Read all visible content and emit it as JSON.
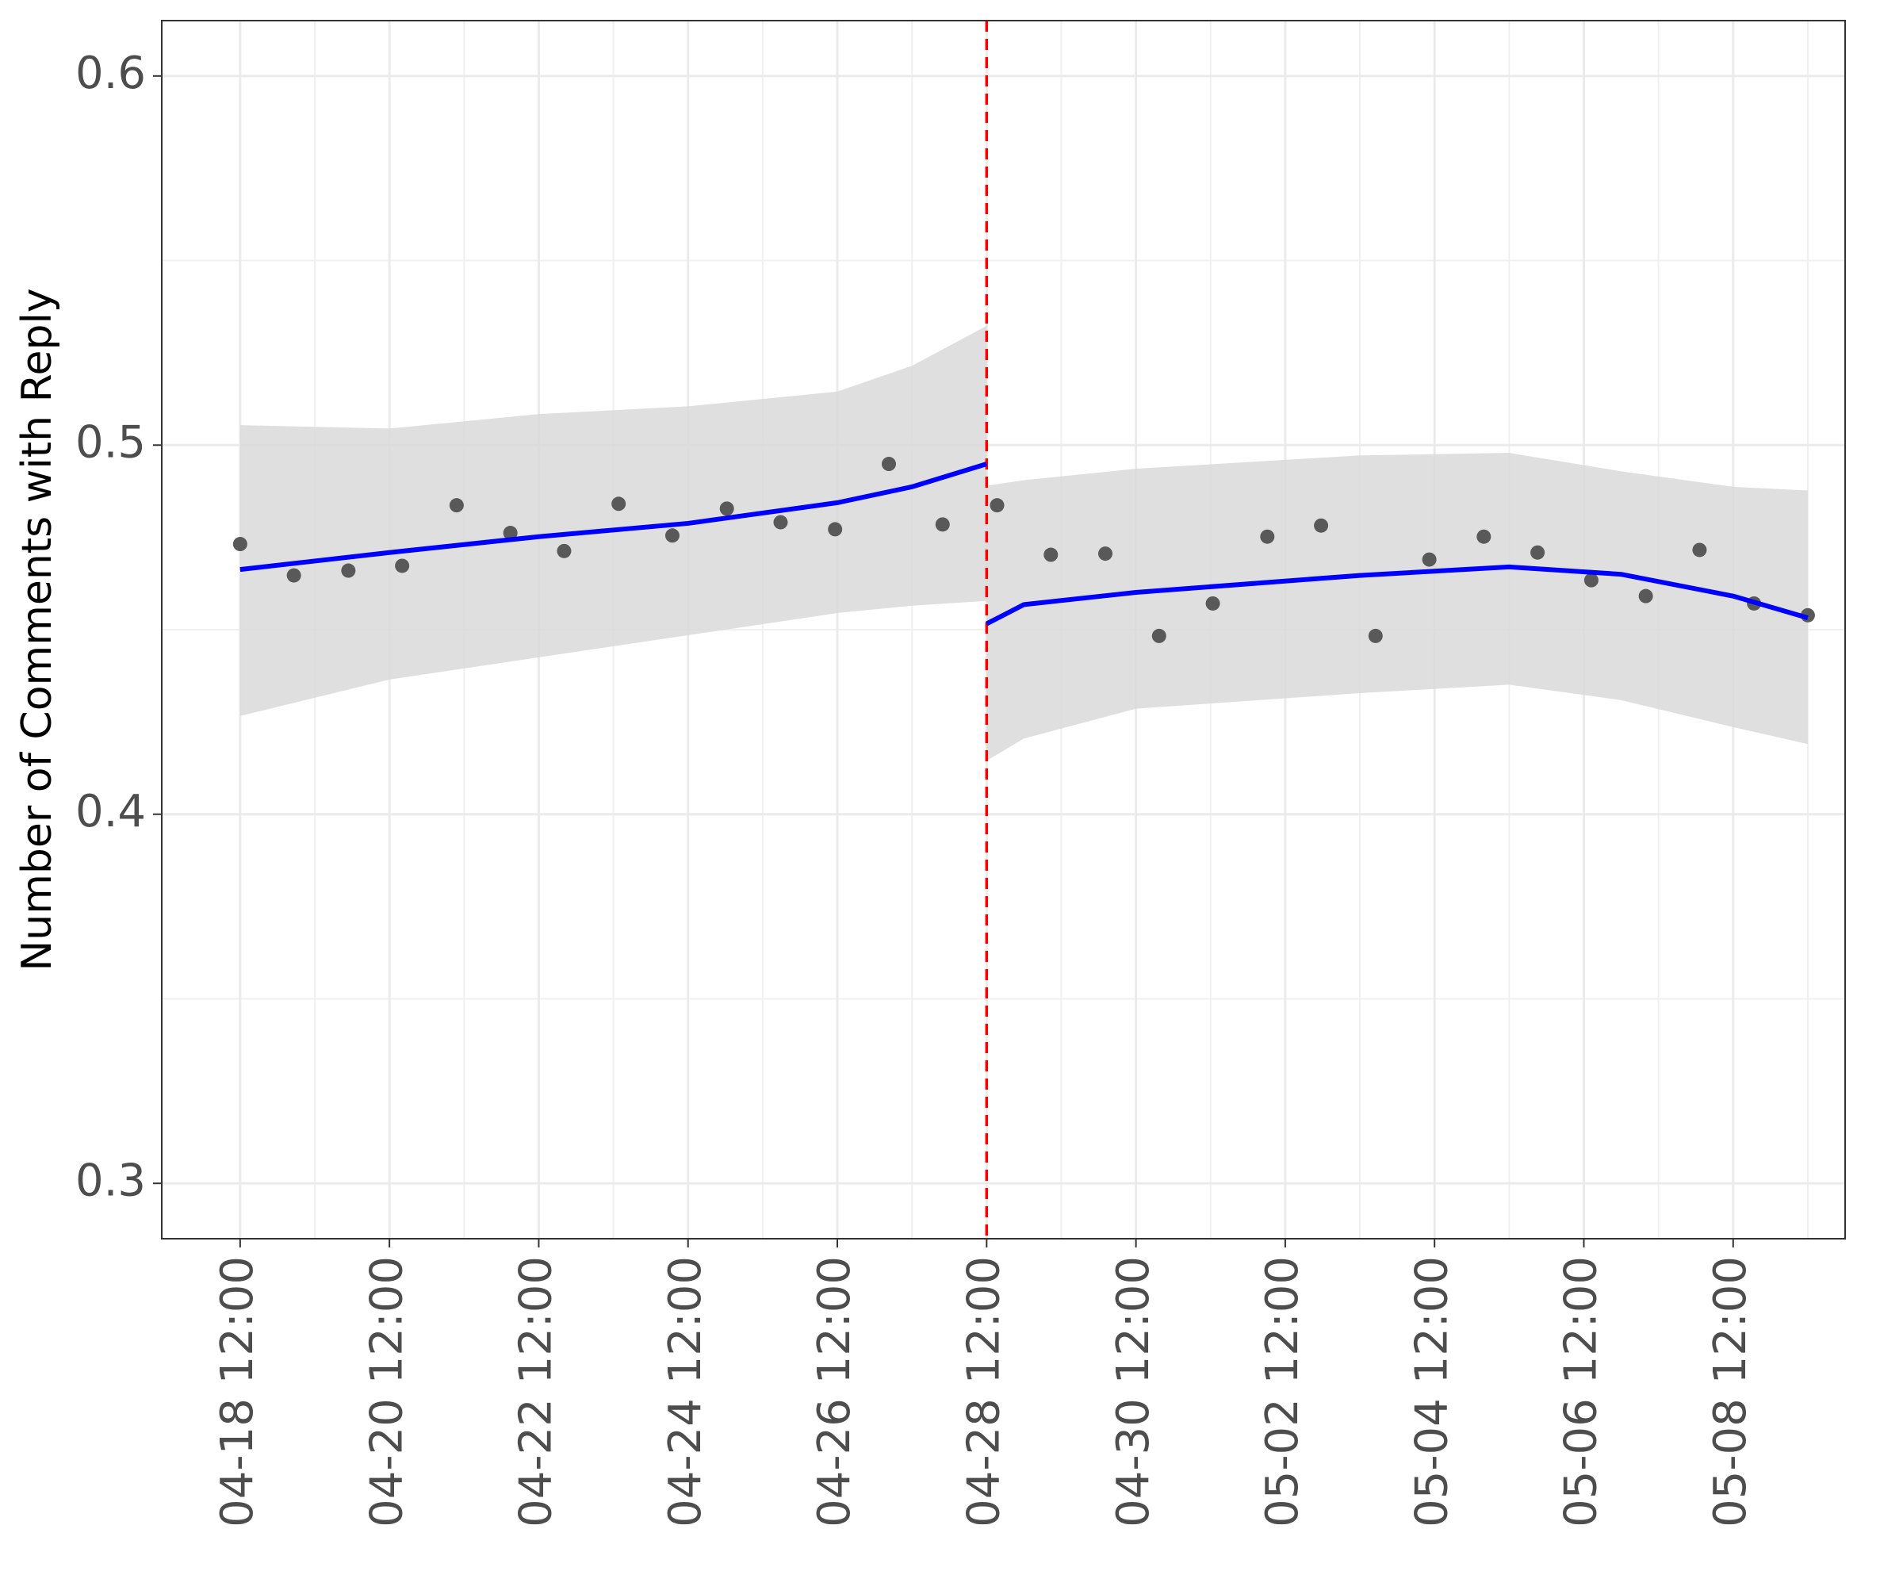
{
  "chart_data": {
    "type": "scatter",
    "ylabel": "Number of Comments with Reply",
    "xlim": [
      -1.05,
      21.5
    ],
    "xticks": [
      {
        "value": 0,
        "label": "04-18 12:00"
      },
      {
        "value": 2,
        "label": "04-20 12:00"
      },
      {
        "value": 4,
        "label": "04-22 12:00"
      },
      {
        "value": 6,
        "label": "04-24 12:00"
      },
      {
        "value": 8,
        "label": "04-26 12:00"
      },
      {
        "value": 10,
        "label": "04-28 12:00"
      },
      {
        "value": 12,
        "label": "04-30 12:00"
      },
      {
        "value": 14,
        "label": "05-02 12:00"
      },
      {
        "value": 16,
        "label": "05-04 12:00"
      },
      {
        "value": 18,
        "label": "05-06 12:00"
      },
      {
        "value": 20,
        "label": "05-08 12:00"
      }
    ],
    "ylim": [
      0.285,
      0.615
    ],
    "yticks": [
      0.3,
      0.4,
      0.5,
      0.6
    ],
    "grid": true,
    "points": {
      "color": "#595959",
      "x": [
        0,
        0.72,
        1.45,
        2.17,
        2.9,
        3.62,
        4.34,
        5.07,
        5.79,
        6.52,
        7.24,
        7.97,
        8.69,
        9.41,
        10.14,
        10.86,
        11.59,
        12.31,
        13.03,
        13.76,
        14.48,
        15.21,
        15.93,
        16.66,
        17.38,
        18.1,
        18.83,
        19.55,
        20.28,
        21
      ],
      "values": [
        0.4732,
        0.4647,
        0.466,
        0.4673,
        0.4837,
        0.4762,
        0.4713,
        0.4841,
        0.4755,
        0.4828,
        0.4791,
        0.4772,
        0.4949,
        0.4785,
        0.4837,
        0.4703,
        0.4706,
        0.4483,
        0.4571,
        0.4752,
        0.4782,
        0.4483,
        0.469,
        0.4752,
        0.4709,
        0.4634,
        0.4591,
        0.4716,
        0.4571,
        0.4539
      ]
    },
    "fits": [
      {
        "color": "#0000ff",
        "band_color": "#d9d9d9",
        "x": [
          0,
          2,
          4,
          6,
          8,
          9,
          10
        ],
        "values": [
          0.4663,
          0.4709,
          0.4752,
          0.4788,
          0.4844,
          0.4887,
          0.4949
        ],
        "upper": [
          0.5054,
          0.5045,
          0.5084,
          0.5105,
          0.5145,
          0.5215,
          0.5323
        ],
        "lower": [
          0.4266,
          0.4365,
          0.4425,
          0.4485,
          0.4545,
          0.4565,
          0.4578
        ]
      },
      {
        "color": "#0000ff",
        "band_color": "#d9d9d9",
        "x": [
          10,
          10.5,
          12,
          15,
          17,
          18.5,
          20,
          21
        ],
        "values": [
          0.4516,
          0.4568,
          0.4601,
          0.4647,
          0.467,
          0.465,
          0.4591,
          0.4532
        ],
        "upper": [
          0.489,
          0.4905,
          0.4936,
          0.4972,
          0.4979,
          0.4929,
          0.4887,
          0.4877
        ],
        "lower": [
          0.4145,
          0.4205,
          0.4286,
          0.4328,
          0.4351,
          0.4309,
          0.4236,
          0.419
        ]
      }
    ],
    "vline": {
      "x": 10,
      "color": "#ff0000"
    }
  }
}
